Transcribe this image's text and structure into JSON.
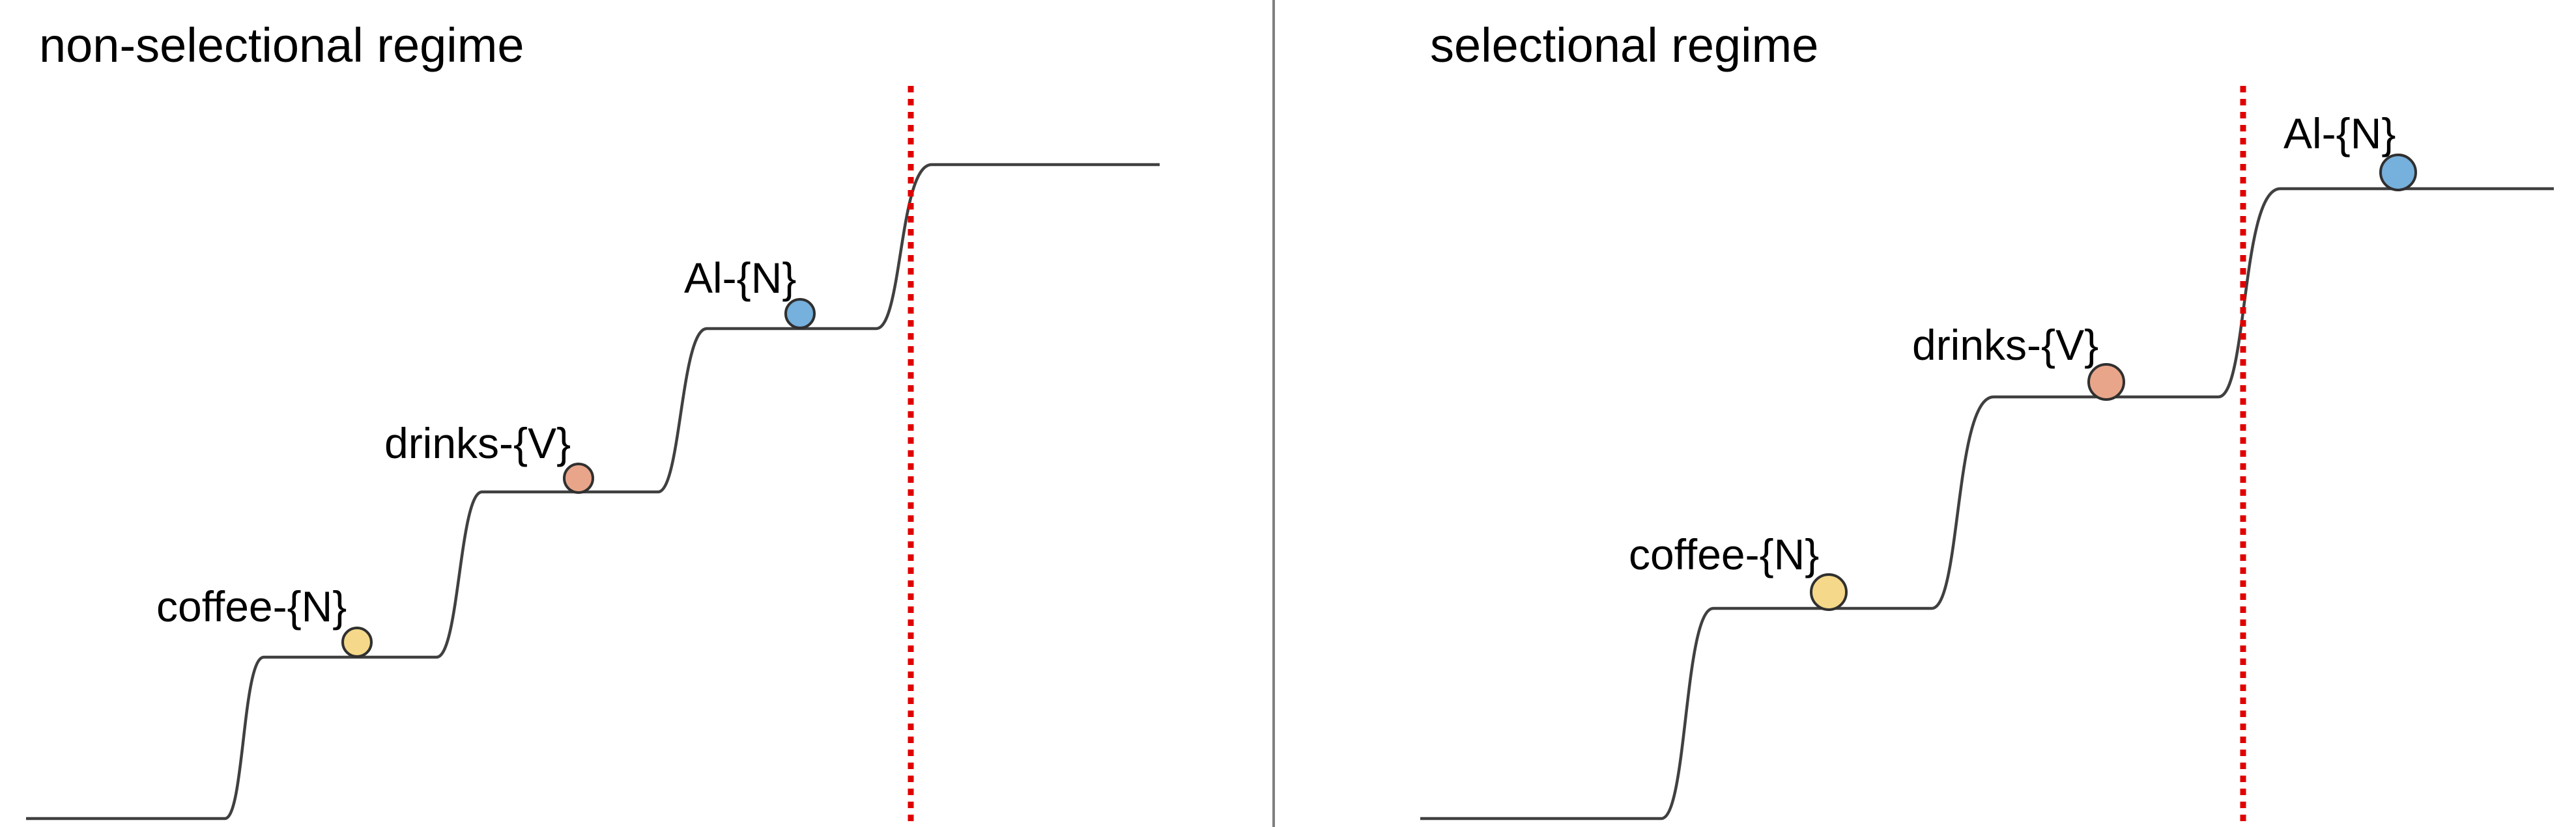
{
  "panels": [
    {
      "title": "non-selectional regime",
      "tokens": [
        {
          "label": "coffee-{N}",
          "color": "#f5d889"
        },
        {
          "label": "drinks-{V}",
          "color": "#e9a58a"
        },
        {
          "label": "Al-{N}",
          "color": "#76b0dc"
        }
      ]
    },
    {
      "title": "selectional regime",
      "tokens": [
        {
          "label": "coffee-{N}",
          "color": "#f5d889"
        },
        {
          "label": "drinks-{V}",
          "color": "#e9a58a"
        },
        {
          "label": "Al-{N}",
          "color": "#76b0dc"
        }
      ]
    }
  ],
  "colors": {
    "curve": "#404040",
    "threshold": "#e00000",
    "divider": "#808080"
  }
}
